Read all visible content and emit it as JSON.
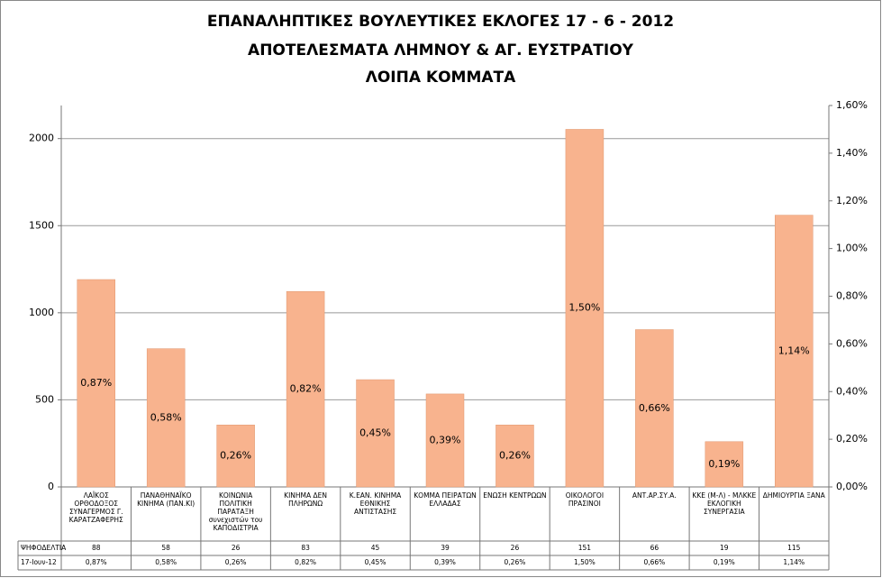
{
  "chart_data": {
    "type": "bar",
    "title": [
      "ΕΠΑΝΑΛΗΠΤΙΚΕΣ ΒΟΥΛΕΥΤΙΚΕΣ ΕΚΛΟΓΕΣ 17 - 6 - 2012",
      "ΑΠΟΤΕΛΕΣΜΑΤΑ ΛΗΜΝΟΥ & ΑΓ. ΕΥΣΤΡΑΤΙΟΥ",
      "ΛΟΙΠΑ ΚΟΜΜΑΤΑ"
    ],
    "categories": [
      "ΛΑΪΚΟΣ ΟΡΘΟΔΟΞΟΣ ΣΥΝΑΓΕΡΜΟΣ Γ. ΚΑΡΑΤΖΑΦΕΡΗΣ",
      "ΠΑΝΑΘΗΝΑΪΚΟ ΚΙΝΗΜΑ (ΠΑΝ.ΚΙ)",
      "ΚΟΙΝΩΝΙΑ ΠΟΛΙΤΙΚΗ ΠΑΡΑΤΑΞΗ συνεχιστών του ΚΑΠΟΔΙΣΤΡΙΑ",
      "ΚΙΝΗΜΑ ΔΕΝ ΠΛΗΡΩΝΩ",
      "Κ.ΕΑΝ. ΚΙΝΗΜΑ ΕΘΝΙΚΗΣ ΑΝΤΙΣΤΑΣΗΣ",
      "ΚΟΜΜΑ ΠΕΙΡΑΤΩΝ ΕΛΛΑΔΑΣ",
      "ΕΝΩΣΗ ΚΕΝΤΡΩΩΝ",
      "ΟΙΚΟΛΟΓΟΙ ΠΡΑΣΙΝΟΙ",
      "ΑΝΤ.ΑΡ.ΣΥ.Α.",
      "ΚΚΕ (Μ-Λ) - ΜΛΚΚΕ ΕΚΛΟΓΙΚΗ ΣΥΝΕΡΓΑΣΙΑ",
      "ΔΗΜΙΟΥΡΓΙΑ ΞΑΝΑ"
    ],
    "series": [
      {
        "name": "ΨΗΦΟΔΕΛΤΙΑ",
        "values": [
          88,
          58,
          26,
          83,
          45,
          39,
          26,
          151,
          66,
          19,
          115
        ]
      },
      {
        "name": "17-Ιουν-12",
        "color": "#f8b38e",
        "axis": "y2",
        "values": [
          0.87,
          0.58,
          0.26,
          0.82,
          0.45,
          0.39,
          0.26,
          1.5,
          0.66,
          0.19,
          1.14
        ],
        "value_labels": [
          "0,87%",
          "0,58%",
          "0,26%",
          "0,82%",
          "0,45%",
          "0,39%",
          "0,26%",
          "1,50%",
          "0,66%",
          "0,19%",
          "1,14%"
        ]
      }
    ],
    "ylim": [
      0,
      2190
    ],
    "yticks": [
      0,
      500,
      1000,
      1500,
      2000
    ],
    "y2lim": [
      0,
      1.6
    ],
    "y2ticks": [
      {
        "value": 0,
        "label": "0,00%"
      },
      {
        "value": 0.2,
        "label": "0,20%"
      },
      {
        "value": 0.4,
        "label": "0,40%"
      },
      {
        "value": 0.6,
        "label": "0,60%"
      },
      {
        "value": 0.8,
        "label": "0,80%"
      },
      {
        "value": 1.0,
        "label": "1,00%"
      },
      {
        "value": 1.2,
        "label": "1,20%"
      },
      {
        "value": 1.4,
        "label": "1,40%"
      },
      {
        "value": 1.6,
        "label": "1,60%"
      }
    ],
    "grid": true
  }
}
